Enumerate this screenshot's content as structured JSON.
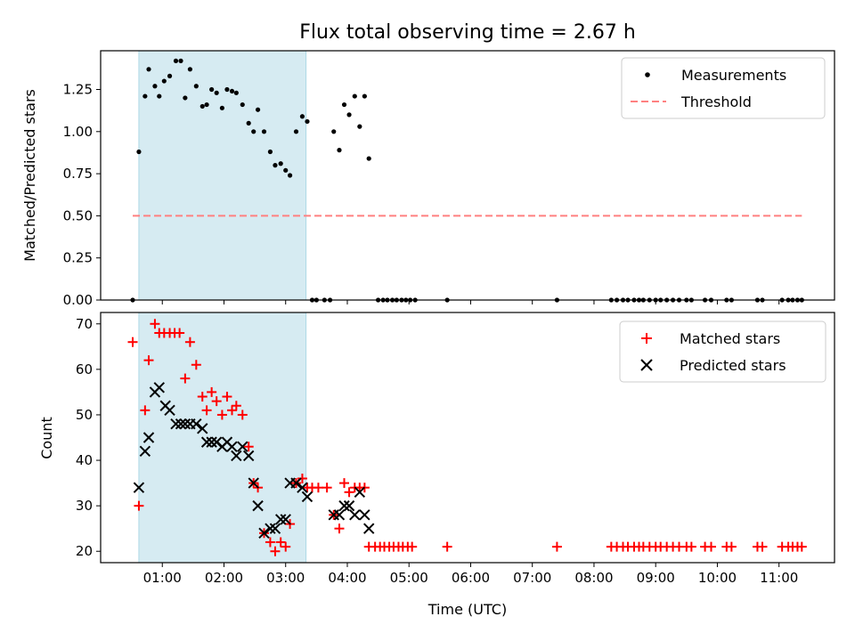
{
  "chart_data": [
    {
      "type": "scatter",
      "title": "Flux total observing time = 2.67 h",
      "xlabel": "",
      "ylabel": "Matched/Predicted stars",
      "ylim": [
        0,
        1.48
      ],
      "yticks": [
        0.0,
        0.25,
        0.5,
        0.75,
        1.0,
        1.25
      ],
      "yticklabels": [
        "0.00",
        "0.25",
        "0.50",
        "0.75",
        "1.00",
        "1.25"
      ],
      "xlim": [
        0.0,
        11.9
      ],
      "xticks": [
        1,
        2,
        3,
        4,
        5,
        6,
        7,
        8,
        9,
        10,
        11
      ],
      "show_xticklabels": false,
      "shaded_span": [
        0.62,
        3.33
      ],
      "shade_color": "#add8e6",
      "legend_position": "top-right",
      "series": [
        {
          "name": "Measurements",
          "marker": "dot",
          "color": "#000000",
          "points": [
            [
              0.52,
              0.0
            ],
            [
              0.62,
              0.88
            ],
            [
              0.72,
              1.21
            ],
            [
              0.78,
              1.37
            ],
            [
              0.88,
              1.27
            ],
            [
              0.95,
              1.21
            ],
            [
              1.03,
              1.3
            ],
            [
              1.12,
              1.33
            ],
            [
              1.22,
              1.42
            ],
            [
              1.3,
              1.42
            ],
            [
              1.37,
              1.2
            ],
            [
              1.45,
              1.37
            ],
            [
              1.55,
              1.27
            ],
            [
              1.65,
              1.15
            ],
            [
              1.72,
              1.16
            ],
            [
              1.8,
              1.25
            ],
            [
              1.88,
              1.23
            ],
            [
              1.97,
              1.14
            ],
            [
              2.05,
              1.25
            ],
            [
              2.13,
              1.24
            ],
            [
              2.2,
              1.23
            ],
            [
              2.3,
              1.16
            ],
            [
              2.4,
              1.05
            ],
            [
              2.48,
              1.0
            ],
            [
              2.55,
              1.13
            ],
            [
              2.65,
              1.0
            ],
            [
              2.75,
              0.88
            ],
            [
              2.83,
              0.8
            ],
            [
              2.92,
              0.81
            ],
            [
              3.0,
              0.77
            ],
            [
              3.07,
              0.74
            ],
            [
              3.17,
              1.0
            ],
            [
              3.27,
              1.09
            ],
            [
              3.35,
              1.06
            ],
            [
              3.43,
              0.0
            ],
            [
              3.5,
              0.0
            ],
            [
              3.63,
              0.0
            ],
            [
              3.72,
              0.0
            ],
            [
              3.78,
              1.0
            ],
            [
              3.87,
              0.89
            ],
            [
              3.95,
              1.16
            ],
            [
              4.03,
              1.1
            ],
            [
              4.12,
              1.21
            ],
            [
              4.2,
              1.03
            ],
            [
              4.28,
              1.21
            ],
            [
              4.35,
              0.84
            ],
            [
              4.5,
              0.0
            ],
            [
              4.58,
              0.0
            ],
            [
              4.65,
              0.0
            ],
            [
              4.73,
              0.0
            ],
            [
              4.8,
              0.0
            ],
            [
              4.88,
              0.0
            ],
            [
              4.95,
              0.0
            ],
            [
              5.02,
              0.0
            ],
            [
              5.1,
              0.0
            ],
            [
              5.62,
              0.0
            ],
            [
              7.4,
              0.0
            ],
            [
              8.28,
              0.0
            ],
            [
              8.37,
              0.0
            ],
            [
              8.47,
              0.0
            ],
            [
              8.55,
              0.0
            ],
            [
              8.65,
              0.0
            ],
            [
              8.73,
              0.0
            ],
            [
              8.8,
              0.0
            ],
            [
              8.9,
              0.0
            ],
            [
              9.0,
              0.0
            ],
            [
              9.08,
              0.0
            ],
            [
              9.18,
              0.0
            ],
            [
              9.28,
              0.0
            ],
            [
              9.38,
              0.0
            ],
            [
              9.5,
              0.0
            ],
            [
              9.58,
              0.0
            ],
            [
              9.8,
              0.0
            ],
            [
              9.9,
              0.0
            ],
            [
              10.15,
              0.0
            ],
            [
              10.23,
              0.0
            ],
            [
              10.65,
              0.0
            ],
            [
              10.73,
              0.0
            ],
            [
              11.05,
              0.0
            ],
            [
              11.15,
              0.0
            ],
            [
              11.22,
              0.0
            ],
            [
              11.3,
              0.0
            ],
            [
              11.37,
              0.0
            ]
          ]
        },
        {
          "name": "Threshold",
          "marker": "dashed-line",
          "color": "#ff8080",
          "points": [
            [
              0.52,
              0.5
            ],
            [
              11.37,
              0.5
            ]
          ]
        }
      ]
    },
    {
      "type": "scatter",
      "title": "",
      "xlabel": "Time (UTC)",
      "ylabel": "Count",
      "ylim": [
        17.5,
        72.5
      ],
      "yticks": [
        20,
        30,
        40,
        50,
        60,
        70
      ],
      "yticklabels": [
        "20",
        "30",
        "40",
        "50",
        "60",
        "70"
      ],
      "xlim": [
        0.0,
        11.9
      ],
      "xticks": [
        1,
        2,
        3,
        4,
        5,
        6,
        7,
        8,
        9,
        10,
        11
      ],
      "xticklabels": [
        "01:00",
        "02:00",
        "03:00",
        "04:00",
        "05:00",
        "06:00",
        "07:00",
        "08:00",
        "09:00",
        "10:00",
        "11:00"
      ],
      "shaded_span": [
        0.62,
        3.33
      ],
      "shade_color": "#add8e6",
      "legend_position": "top-right",
      "series": [
        {
          "name": "Matched stars",
          "marker": "plus",
          "color": "#ff0000",
          "points": [
            [
              0.52,
              66
            ],
            [
              0.62,
              30
            ],
            [
              0.72,
              51
            ],
            [
              0.78,
              62
            ],
            [
              0.88,
              70
            ],
            [
              0.95,
              68
            ],
            [
              1.03,
              68
            ],
            [
              1.12,
              68
            ],
            [
              1.2,
              68
            ],
            [
              1.28,
              68
            ],
            [
              1.37,
              58
            ],
            [
              1.45,
              66
            ],
            [
              1.55,
              61
            ],
            [
              1.65,
              54
            ],
            [
              1.72,
              51
            ],
            [
              1.8,
              55
            ],
            [
              1.88,
              53
            ],
            [
              1.97,
              50
            ],
            [
              2.05,
              54
            ],
            [
              2.13,
              51
            ],
            [
              2.2,
              52
            ],
            [
              2.3,
              50
            ],
            [
              2.4,
              43
            ],
            [
              2.48,
              35
            ],
            [
              2.55,
              34
            ],
            [
              2.65,
              24
            ],
            [
              2.75,
              22
            ],
            [
              2.83,
              20
            ],
            [
              2.92,
              22
            ],
            [
              3.0,
              21
            ],
            [
              3.07,
              26
            ],
            [
              3.17,
              35
            ],
            [
              3.27,
              36
            ],
            [
              3.35,
              34
            ],
            [
              3.43,
              34
            ],
            [
              3.53,
              34
            ],
            [
              3.67,
              34
            ],
            [
              3.78,
              28
            ],
            [
              3.87,
              25
            ],
            [
              3.95,
              35
            ],
            [
              4.03,
              33
            ],
            [
              4.12,
              34
            ],
            [
              4.2,
              34
            ],
            [
              4.28,
              34
            ],
            [
              4.35,
              21
            ],
            [
              4.45,
              21
            ],
            [
              4.53,
              21
            ],
            [
              4.6,
              21
            ],
            [
              4.68,
              21
            ],
            [
              4.75,
              21
            ],
            [
              4.83,
              21
            ],
            [
              4.9,
              21
            ],
            [
              4.98,
              21
            ],
            [
              5.05,
              21
            ],
            [
              5.62,
              21
            ],
            [
              7.4,
              21
            ],
            [
              8.28,
              21
            ],
            [
              8.37,
              21
            ],
            [
              8.47,
              21
            ],
            [
              8.55,
              21
            ],
            [
              8.65,
              21
            ],
            [
              8.73,
              21
            ],
            [
              8.8,
              21
            ],
            [
              8.9,
              21
            ],
            [
              9.0,
              21
            ],
            [
              9.08,
              21
            ],
            [
              9.18,
              21
            ],
            [
              9.28,
              21
            ],
            [
              9.38,
              21
            ],
            [
              9.5,
              21
            ],
            [
              9.58,
              21
            ],
            [
              9.8,
              21
            ],
            [
              9.9,
              21
            ],
            [
              10.15,
              21
            ],
            [
              10.23,
              21
            ],
            [
              10.65,
              21
            ],
            [
              10.73,
              21
            ],
            [
              11.05,
              21
            ],
            [
              11.15,
              21
            ],
            [
              11.22,
              21
            ],
            [
              11.3,
              21
            ],
            [
              11.37,
              21
            ]
          ]
        },
        {
          "name": "Predicted stars",
          "marker": "x",
          "color": "#000000",
          "points": [
            [
              0.62,
              34
            ],
            [
              0.72,
              42
            ],
            [
              0.78,
              45
            ],
            [
              0.88,
              55
            ],
            [
              0.95,
              56
            ],
            [
              1.05,
              52
            ],
            [
              1.12,
              51
            ],
            [
              1.22,
              48
            ],
            [
              1.3,
              48
            ],
            [
              1.37,
              48
            ],
            [
              1.45,
              48
            ],
            [
              1.55,
              48
            ],
            [
              1.65,
              47
            ],
            [
              1.72,
              44
            ],
            [
              1.8,
              44
            ],
            [
              1.88,
              44
            ],
            [
              1.97,
              43
            ],
            [
              2.05,
              44
            ],
            [
              2.13,
              43
            ],
            [
              2.2,
              41
            ],
            [
              2.3,
              43
            ],
            [
              2.4,
              41
            ],
            [
              2.48,
              35
            ],
            [
              2.55,
              30
            ],
            [
              2.65,
              24
            ],
            [
              2.75,
              25
            ],
            [
              2.83,
              25
            ],
            [
              2.92,
              27
            ],
            [
              3.0,
              27
            ],
            [
              3.07,
              35
            ],
            [
              3.17,
              35
            ],
            [
              3.27,
              34
            ],
            [
              3.35,
              32
            ],
            [
              3.78,
              28
            ],
            [
              3.87,
              28
            ],
            [
              3.95,
              30
            ],
            [
              4.03,
              30
            ],
            [
              4.12,
              28
            ],
            [
              4.2,
              33
            ],
            [
              4.28,
              28
            ],
            [
              4.35,
              25
            ]
          ]
        }
      ]
    }
  ]
}
